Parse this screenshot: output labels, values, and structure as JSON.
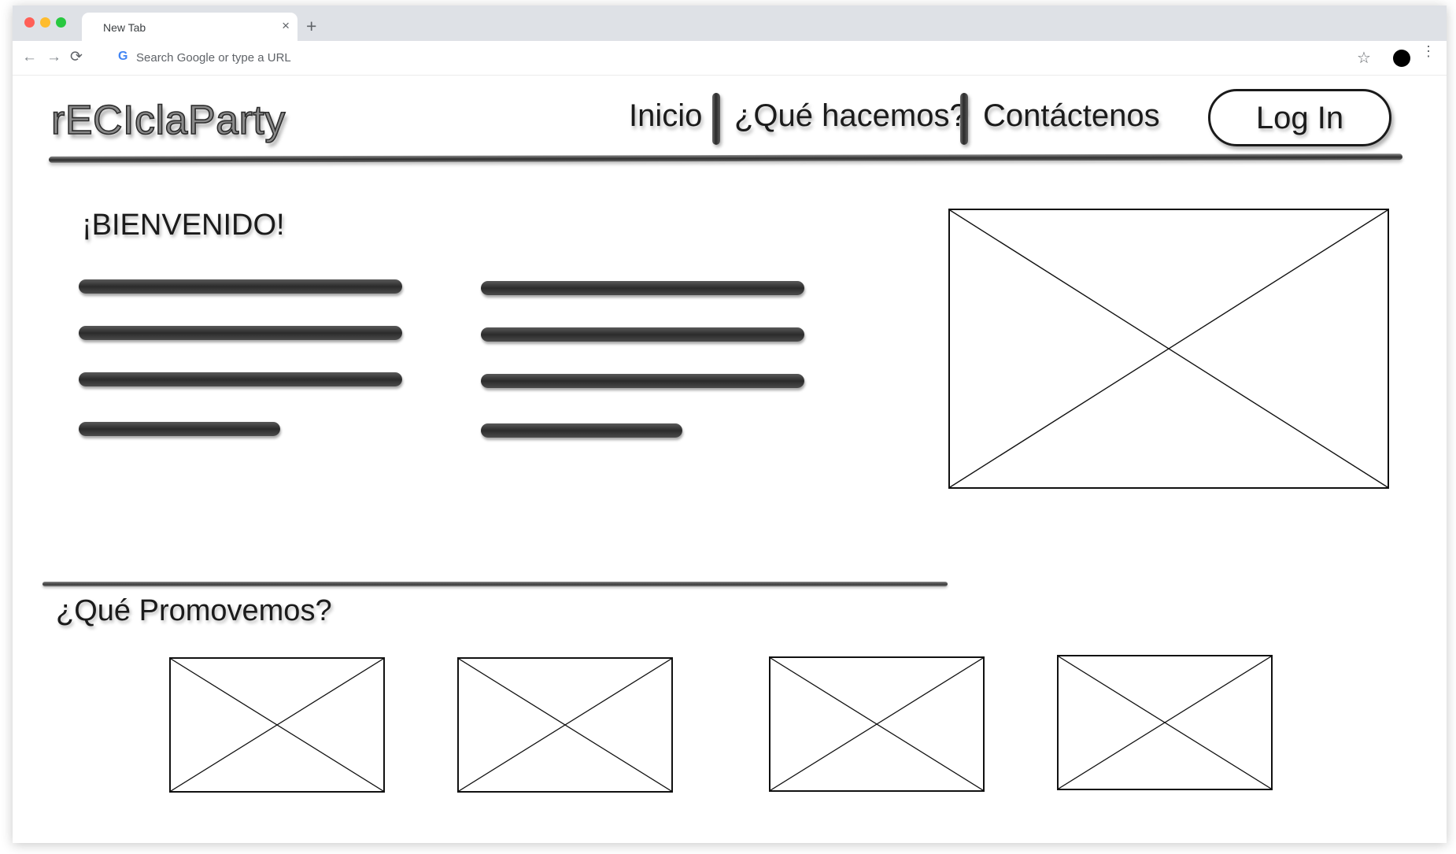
{
  "browser": {
    "tab_title": "New Tab",
    "tab_close": "×",
    "new_tab": "+",
    "address_placeholder": "Search Google or type a URL",
    "address_icon": "G",
    "nav": {
      "back": "←",
      "forward": "→",
      "reload": "⟳"
    },
    "star": "☆",
    "menu": "⋮",
    "colors": {
      "close": "#ff5f57",
      "minimize": "#febc2e",
      "zoom": "#28c840"
    }
  },
  "site": {
    "brand": "rECIclaParty",
    "nav": [
      "Inicio",
      "¿Qué hacemos?",
      "Contáctenos"
    ],
    "login": "Log In",
    "welcome": "¡BIENVENIDO!",
    "promo_title": "¿Qué Promovemos?"
  }
}
